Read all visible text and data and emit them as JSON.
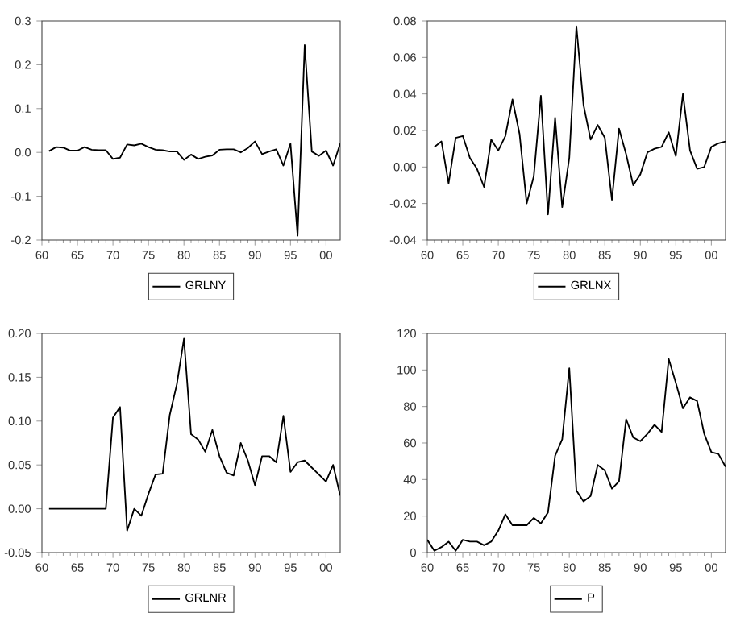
{
  "chart_data": [
    {
      "type": "line",
      "legend": "bottom",
      "xlim": [
        "1960",
        "2002"
      ],
      "xticks": [
        {
          "value": "1960",
          "label": "60"
        },
        {
          "value": "1965",
          "label": "65"
        },
        {
          "value": "1970",
          "label": "70"
        },
        {
          "value": "1975",
          "label": "75"
        },
        {
          "value": "1980",
          "label": "80"
        },
        {
          "value": "1985",
          "label": "85"
        },
        {
          "value": "1990",
          "label": "90"
        },
        {
          "value": "1995",
          "label": "95"
        },
        {
          "value": "2000",
          "label": "00"
        }
      ],
      "ylim": [
        -0.2,
        0.3
      ],
      "yticks": [
        {
          "value": -0.2,
          "label": "-0.2"
        },
        -0.1,
        {
          "value": 0,
          "label": "0.0"
        },
        0.1,
        0.2,
        0.3
      ],
      "x": [
        "1961",
        "1962",
        "1963",
        "1964",
        "1965",
        "1966",
        "1967",
        "1968",
        "1969",
        "1970",
        "1971",
        "1972",
        "1973",
        "1974",
        "1975",
        "1976",
        "1977",
        "1978",
        "1979",
        "1980",
        "1981",
        "1982",
        "1983",
        "1984",
        "1985",
        "1986",
        "1987",
        "1988",
        "1989",
        "1990",
        "1991",
        "1992",
        "1993",
        "1994",
        "1995",
        "1996",
        "1997",
        "1998",
        "1999",
        "2000",
        "2001",
        "2002"
      ],
      "series": [
        {
          "name": "GRLNY",
          "color": "#000000",
          "values": [
            0.003,
            0.012,
            0.011,
            0.004,
            0.004,
            0.012,
            0.006,
            0.005,
            0.005,
            -0.015,
            -0.012,
            0.018,
            0.016,
            0.02,
            0.012,
            0.006,
            0.005,
            0.002,
            0.002,
            -0.017,
            -0.005,
            -0.015,
            -0.01,
            -0.007,
            0.006,
            0.007,
            0.007,
            0.0,
            0.01,
            0.025,
            -0.004,
            0.002,
            0.007,
            -0.03,
            0.02,
            -0.19,
            0.245,
            0.002,
            -0.008,
            0.004,
            -0.03,
            0.02
          ]
        }
      ]
    },
    {
      "type": "line",
      "legend": "bottom",
      "xlim": [
        "1960",
        "2002"
      ],
      "xticks": [
        {
          "value": "1960",
          "label": "60"
        },
        {
          "value": "1965",
          "label": "65"
        },
        {
          "value": "1970",
          "label": "70"
        },
        {
          "value": "1975",
          "label": "75"
        },
        {
          "value": "1980",
          "label": "80"
        },
        {
          "value": "1985",
          "label": "85"
        },
        {
          "value": "1990",
          "label": "90"
        },
        {
          "value": "1995",
          "label": "95"
        },
        {
          "value": "2000",
          "label": "00"
        }
      ],
      "ylim": [
        -0.04,
        0.08
      ],
      "yticks": [
        -0.04,
        -0.02,
        {
          "value": 0,
          "label": "0.00"
        },
        0.02,
        0.04,
        0.06,
        0.08
      ],
      "x": [
        "1961",
        "1962",
        "1963",
        "1964",
        "1965",
        "1966",
        "1967",
        "1968",
        "1969",
        "1970",
        "1971",
        "1972",
        "1973",
        "1974",
        "1975",
        "1976",
        "1977",
        "1978",
        "1979",
        "1980",
        "1981",
        "1982",
        "1983",
        "1984",
        "1985",
        "1986",
        "1987",
        "1988",
        "1989",
        "1990",
        "1991",
        "1992",
        "1993",
        "1994",
        "1995",
        "1996",
        "1997",
        "1998",
        "1999",
        "2000",
        "2001",
        "2002"
      ],
      "series": [
        {
          "name": "GRLNX",
          "color": "#000000",
          "values": [
            0.011,
            0.014,
            -0.009,
            0.016,
            0.017,
            0.005,
            -0.001,
            -0.011,
            0.015,
            0.009,
            0.017,
            0.037,
            0.018,
            -0.02,
            -0.005,
            0.039,
            -0.026,
            0.027,
            -0.022,
            0.005,
            0.077,
            0.034,
            0.015,
            0.023,
            0.016,
            -0.018,
            0.021,
            0.007,
            -0.01,
            -0.004,
            0.008,
            0.01,
            0.011,
            0.019,
            0.006,
            0.04,
            0.009,
            -0.001,
            0.0,
            0.011,
            0.013,
            0.014
          ]
        }
      ]
    },
    {
      "type": "line",
      "legend": "bottom",
      "xlim": [
        "1960",
        "2002"
      ],
      "xticks": [
        {
          "value": "1960",
          "label": "60"
        },
        {
          "value": "1965",
          "label": "65"
        },
        {
          "value": "1970",
          "label": "70"
        },
        {
          "value": "1975",
          "label": "75"
        },
        {
          "value": "1980",
          "label": "80"
        },
        {
          "value": "1985",
          "label": "85"
        },
        {
          "value": "1990",
          "label": "90"
        },
        {
          "value": "1995",
          "label": "95"
        },
        {
          "value": "2000",
          "label": "00"
        }
      ],
      "ylim": [
        -0.05,
        0.2
      ],
      "yticks": [
        -0.05,
        {
          "value": 0,
          "label": "0.00"
        },
        0.05,
        {
          "value": 0.1,
          "label": "0.10"
        },
        0.15,
        {
          "value": 0.2,
          "label": "0.20"
        }
      ],
      "x": [
        "1961",
        "1962",
        "1963",
        "1964",
        "1965",
        "1966",
        "1967",
        "1968",
        "1969",
        "1970",
        "1971",
        "1972",
        "1973",
        "1974",
        "1975",
        "1976",
        "1977",
        "1978",
        "1979",
        "1980",
        "1981",
        "1982",
        "1983",
        "1984",
        "1985",
        "1986",
        "1987",
        "1988",
        "1989",
        "1990",
        "1991",
        "1992",
        "1993",
        "1994",
        "1995",
        "1996",
        "1997",
        "1998",
        "1999",
        "2000",
        "2001",
        "2002"
      ],
      "series": [
        {
          "name": "GRLNR",
          "color": "#000000",
          "values": [
            0,
            0,
            0,
            0,
            0,
            0,
            0,
            0,
            0,
            0.104,
            0.116,
            -0.025,
            0.0,
            -0.008,
            0.017,
            0.039,
            0.04,
            0.107,
            0.142,
            0.194,
            0.085,
            0.079,
            0.065,
            0.09,
            0.06,
            0.041,
            0.038,
            0.075,
            0.055,
            0.027,
            0.06,
            0.06,
            0.053,
            0.106,
            0.042,
            0.053,
            0.055,
            0.047,
            0.039,
            0.031,
            0.05,
            0.015
          ]
        }
      ]
    },
    {
      "type": "line",
      "legend": "bottom",
      "xlim": [
        "1960",
        "2002"
      ],
      "xticks": [
        {
          "value": "1960",
          "label": "60"
        },
        {
          "value": "1965",
          "label": "65"
        },
        {
          "value": "1970",
          "label": "70"
        },
        {
          "value": "1975",
          "label": "75"
        },
        {
          "value": "1980",
          "label": "80"
        },
        {
          "value": "1985",
          "label": "85"
        },
        {
          "value": "1990",
          "label": "90"
        },
        {
          "value": "1995",
          "label": "95"
        },
        {
          "value": "2000",
          "label": "00"
        }
      ],
      "ylim": [
        0,
        120
      ],
      "yticks": [
        0,
        20,
        40,
        60,
        80,
        100,
        120
      ],
      "x": [
        "1960",
        "1961",
        "1962",
        "1963",
        "1964",
        "1965",
        "1966",
        "1967",
        "1968",
        "1969",
        "1970",
        "1971",
        "1972",
        "1973",
        "1974",
        "1975",
        "1976",
        "1977",
        "1978",
        "1979",
        "1980",
        "1981",
        "1982",
        "1983",
        "1984",
        "1985",
        "1986",
        "1987",
        "1988",
        "1989",
        "1990",
        "1991",
        "1992",
        "1993",
        "1994",
        "1995",
        "1996",
        "1997",
        "1998",
        "1999",
        "2000",
        "2001",
        "2002"
      ],
      "series": [
        {
          "name": "P",
          "color": "#000000",
          "values": [
            7,
            1,
            3,
            6,
            1,
            7,
            6,
            6,
            4,
            6,
            12,
            21,
            15,
            15,
            15,
            19,
            16,
            22,
            53,
            62,
            101,
            34,
            28,
            31,
            48,
            45,
            35,
            39,
            73,
            63,
            61,
            65,
            70,
            66,
            106,
            93,
            79,
            85,
            83,
            65,
            55,
            54,
            47
          ]
        }
      ]
    }
  ]
}
